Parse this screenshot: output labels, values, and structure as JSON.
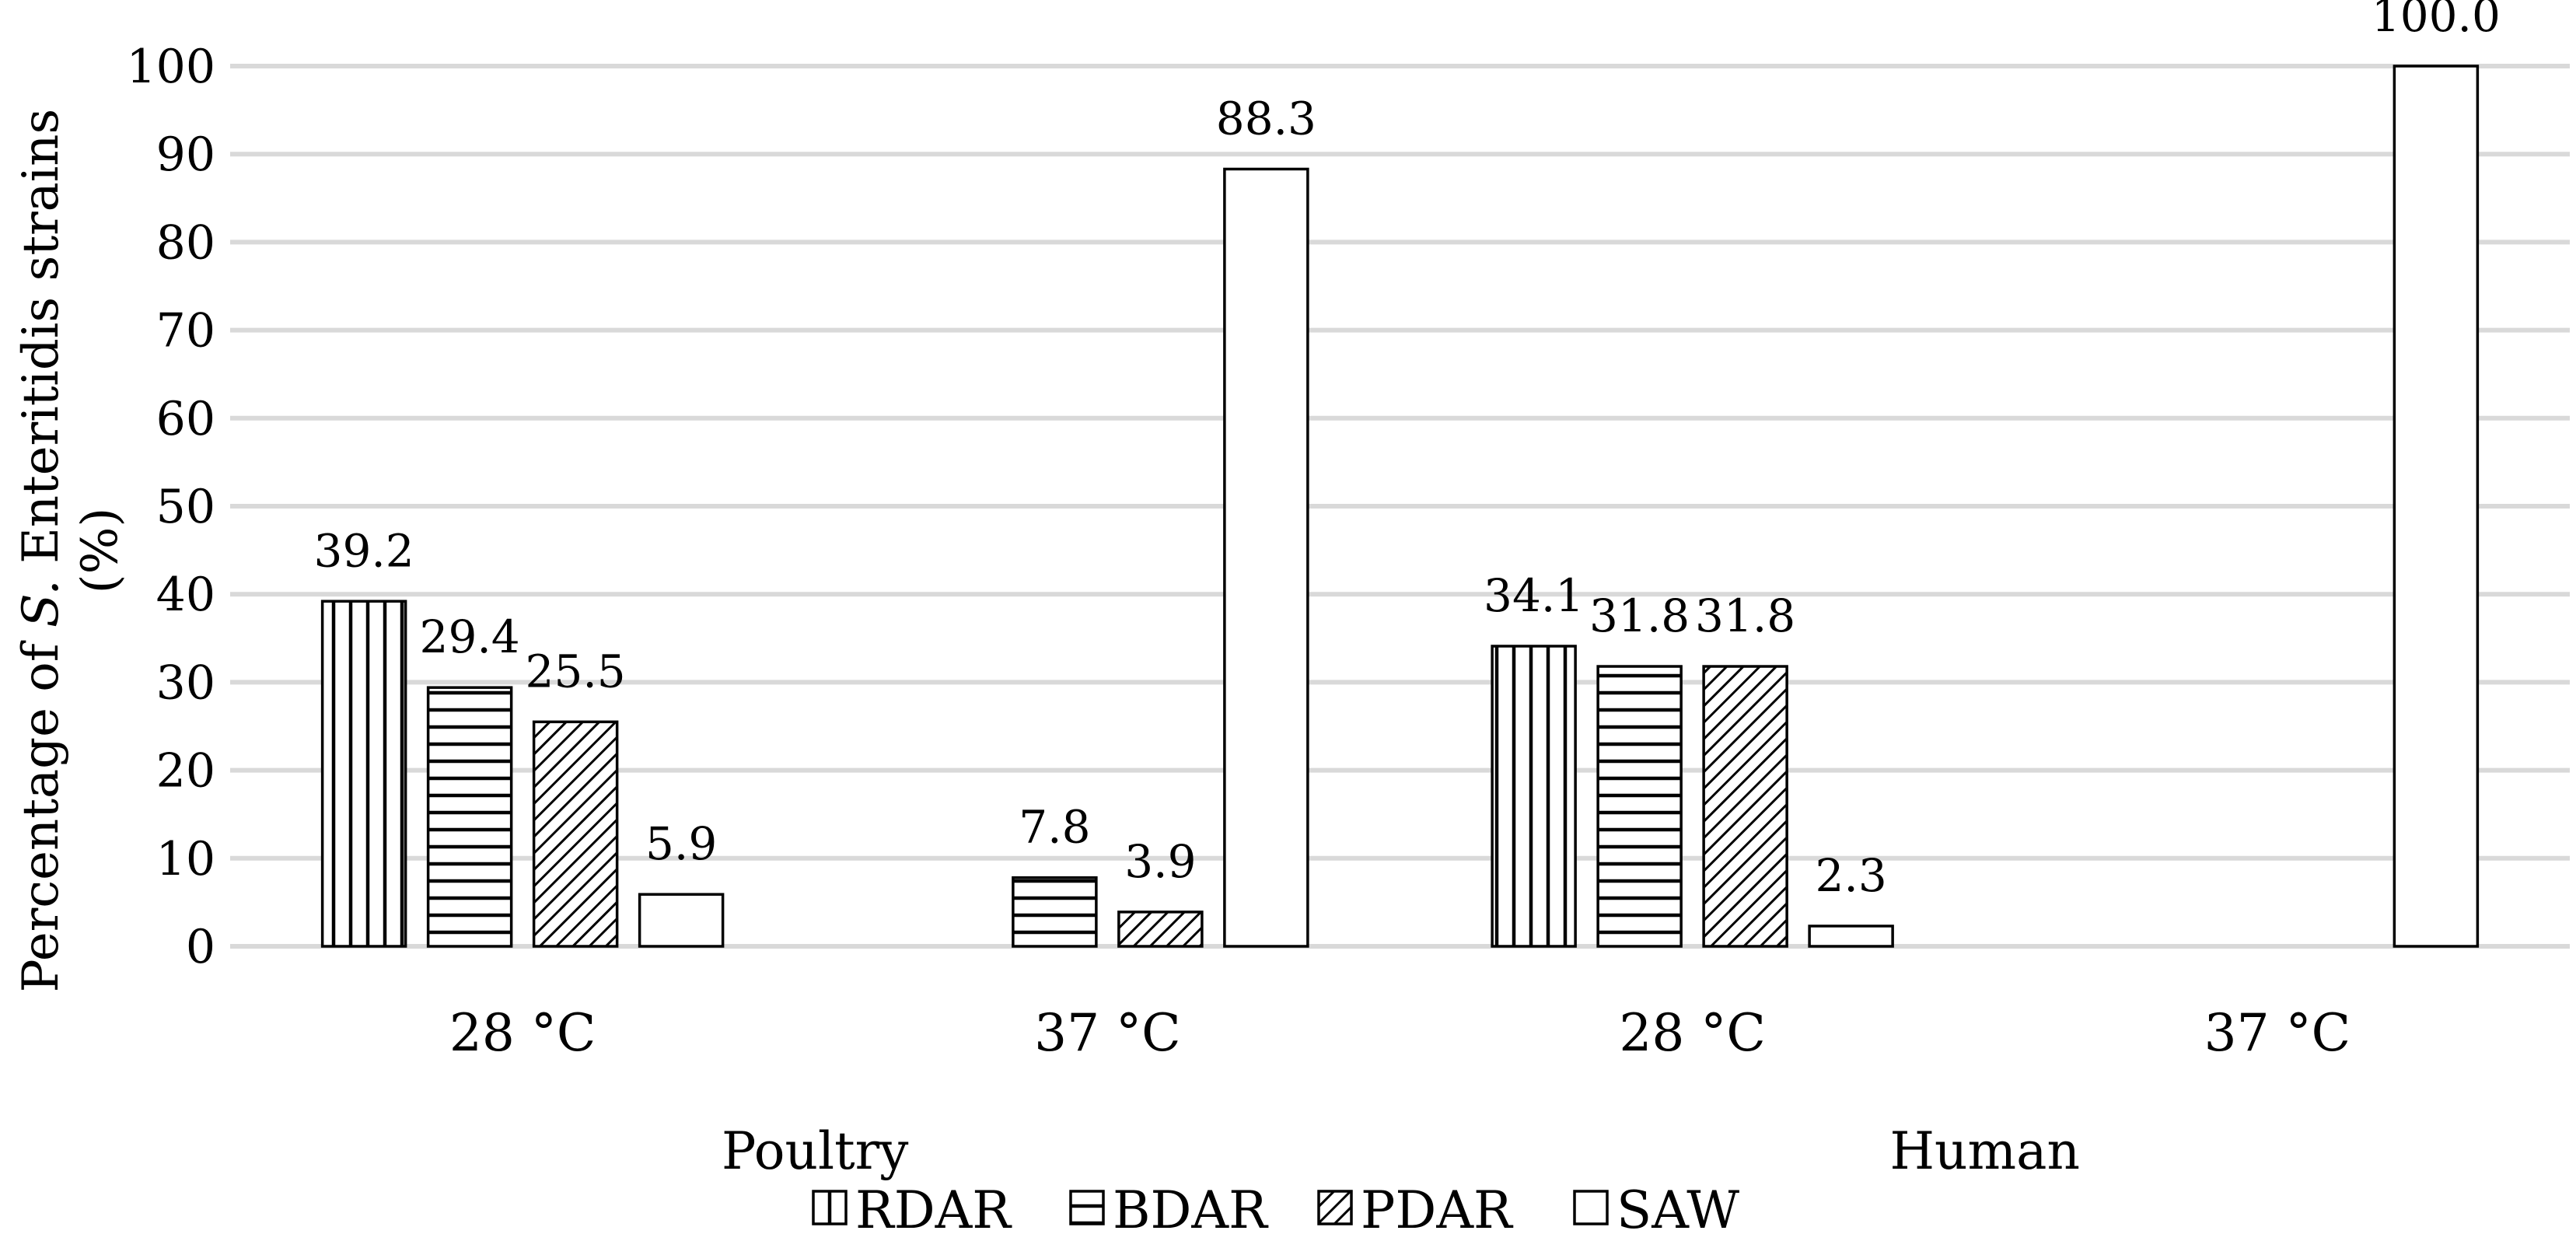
{
  "chart_data": {
    "type": "bar",
    "ylabel_parts": [
      "Percentage of ",
      "S.",
      " Enteritidis strains",
      "(%)"
    ],
    "ylim": [
      0,
      100
    ],
    "yticks": [
      0,
      10,
      20,
      30,
      40,
      50,
      60,
      70,
      80,
      90,
      100
    ],
    "grid": true,
    "groups": [
      "Poultry",
      "Human"
    ],
    "categories": [
      "28 °C",
      "37 °C",
      "28 °C",
      "37 °C"
    ],
    "category_groups": [
      0,
      0,
      1,
      1
    ],
    "series": [
      {
        "name": "RDAR",
        "pattern": "vertical",
        "values": [
          39.2,
          null,
          34.1,
          null
        ],
        "labels": [
          "39.2",
          null,
          "34.1",
          null
        ]
      },
      {
        "name": "BDAR",
        "pattern": "horizontal",
        "values": [
          29.4,
          7.8,
          31.8,
          null
        ],
        "labels": [
          "29.4",
          "7.8",
          "31.8",
          null
        ]
      },
      {
        "name": "PDAR",
        "pattern": "diagonal",
        "values": [
          25.5,
          3.9,
          31.8,
          null
        ],
        "labels": [
          "25.5",
          "3.9",
          "31.8",
          null
        ]
      },
      {
        "name": "SAW",
        "pattern": "none",
        "values": [
          5.9,
          88.3,
          2.3,
          100.0
        ],
        "labels": [
          "5.9",
          "88.3",
          "2.3",
          "100.0"
        ]
      }
    ],
    "legend_position": "bottom",
    "colors": {
      "fill": "#ffffff",
      "stroke": "#000000",
      "grid": "#d9d9d9"
    }
  }
}
